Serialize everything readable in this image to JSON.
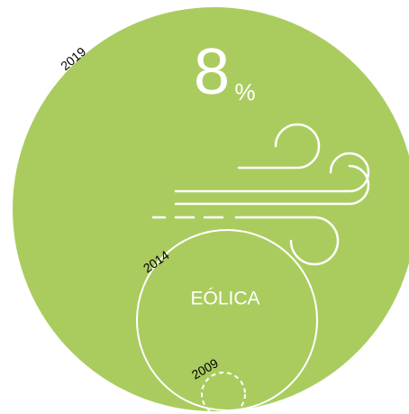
{
  "value": 8,
  "unit": "%",
  "label": "EÓLICA",
  "years": [
    "2019",
    "2014",
    "2009"
  ]
}
